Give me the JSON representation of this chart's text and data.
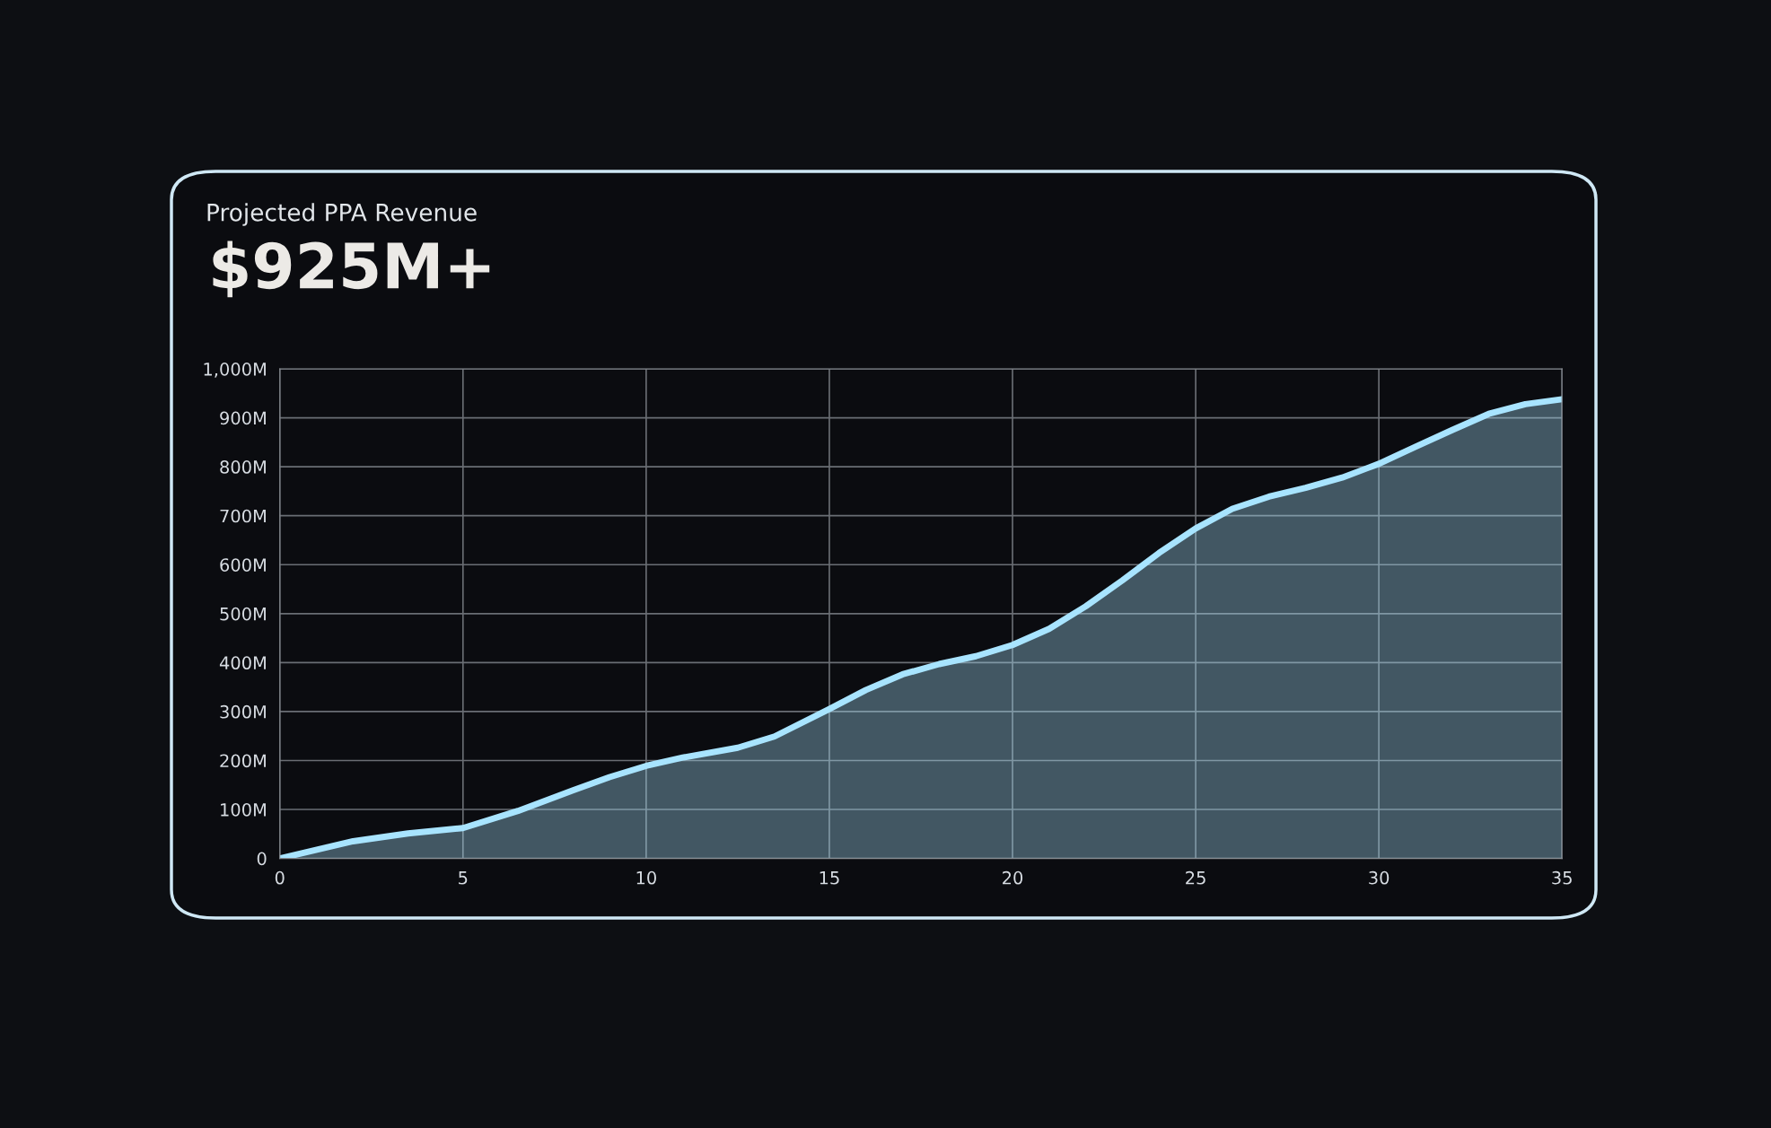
{
  "chart_data": {
    "type": "area",
    "title": "Projected PPA Revenue",
    "subtitle": "$925M+",
    "x": [
      0,
      2,
      3.5,
      5,
      6.5,
      8,
      9,
      10,
      11,
      12.5,
      13.5,
      15,
      16,
      17,
      18,
      19,
      20,
      21,
      22,
      23,
      24,
      25,
      26,
      27,
      28,
      29,
      30,
      31,
      32,
      33,
      34,
      35
    ],
    "series": [
      {
        "color": "#a8e4ff",
        "values": [
          0,
          35,
          51,
          62,
          97,
          139,
          166,
          189,
          206,
          226,
          249,
          305,
          344,
          376,
          397,
          413,
          436,
          469,
          515,
          568,
          624,
          674,
          714,
          739,
          757,
          778,
          806,
          841,
          875,
          908,
          928,
          938
        ]
      }
    ],
    "xlim": [
      0,
      35
    ],
    "xticks": [
      0,
      5,
      10,
      15,
      20,
      25,
      30,
      35
    ],
    "ylim": [
      0,
      1000
    ],
    "yticks": [
      0,
      {
        "value": 100,
        "label": "100M"
      },
      {
        "value": 200,
        "label": "200M"
      },
      {
        "value": 300,
        "label": "300M"
      },
      {
        "value": 400,
        "label": "400M"
      },
      {
        "value": 500,
        "label": "500M"
      },
      {
        "value": 600,
        "label": "600M"
      },
      {
        "value": 700,
        "label": "700M"
      },
      {
        "value": 800,
        "label": "800M"
      },
      {
        "value": 900,
        "label": "900M"
      },
      {
        "value": 1000,
        "label": "1,000M"
      }
    ],
    "grid": true
  }
}
